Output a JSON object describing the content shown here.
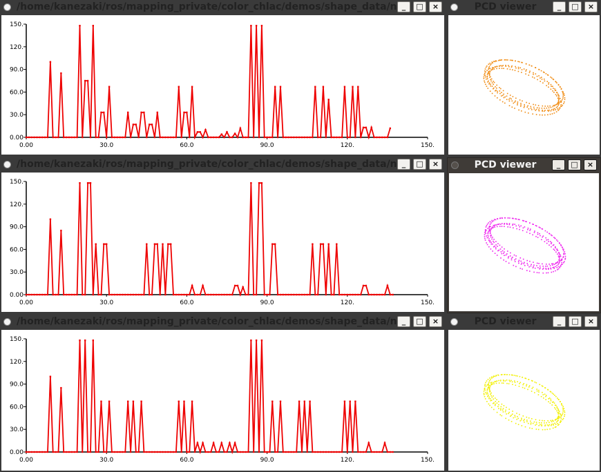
{
  "windows": [
    {
      "id": "hist1",
      "title": "/home/kanezaki/ros/mapping_private/color_chlac/demos/shape_data/ne",
      "active": false,
      "buttons": [
        "_",
        "□",
        "×"
      ]
    },
    {
      "id": "pcd1",
      "title": "PCD viewer",
      "active": false,
      "buttons": [
        "_",
        "□",
        "×"
      ]
    },
    {
      "id": "hist2",
      "title": "/home/kanezaki/ros/mapping_private/color_chlac/demos/shape_data/ne",
      "active": false,
      "buttons": [
        "_",
        "□",
        "×"
      ]
    },
    {
      "id": "pcd2",
      "title": "PCD viewer",
      "active": true,
      "buttons": [
        "_",
        "□",
        "×"
      ]
    },
    {
      "id": "hist3",
      "title": "/home/kanezaki/ros/mapping_private/color_chlac/demos/shape_data/ne",
      "active": false,
      "buttons": [
        "_",
        "□",
        "×"
      ]
    },
    {
      "id": "pcd3",
      "title": "PCD viewer",
      "active": false,
      "buttons": [
        "_",
        "□",
        "×"
      ]
    }
  ],
  "pcd_colors": [
    "#f08a10",
    "#ee22ee",
    "#f2f000"
  ],
  "chart_data": [
    {
      "type": "line",
      "color": "#ee0000",
      "xlim": [
        0,
        150
      ],
      "ylim": [
        0,
        150
      ],
      "xticks": [
        "0.00",
        "30.0",
        "60.0",
        "90.0",
        "120.",
        "150."
      ],
      "yticks": [
        "0.00",
        "30.0",
        "60.0",
        "90.0",
        "120.",
        "150."
      ],
      "peaks": [
        [
          9,
          100
        ],
        [
          13,
          85
        ],
        [
          20,
          148
        ],
        [
          22,
          75
        ],
        [
          23,
          75
        ],
        [
          25,
          148
        ],
        [
          28,
          33
        ],
        [
          29,
          33
        ],
        [
          31,
          67
        ],
        [
          38,
          33
        ],
        [
          40,
          17
        ],
        [
          41,
          17
        ],
        [
          43,
          33
        ],
        [
          44,
          33
        ],
        [
          46,
          17
        ],
        [
          47,
          17
        ],
        [
          49,
          33
        ],
        [
          57,
          67
        ],
        [
          59,
          33
        ],
        [
          60,
          33
        ],
        [
          62,
          67
        ],
        [
          64,
          7
        ],
        [
          65,
          7
        ],
        [
          67,
          10
        ],
        [
          73,
          4
        ],
        [
          75,
          7
        ],
        [
          78,
          5
        ],
        [
          80,
          12
        ],
        [
          84,
          148
        ],
        [
          86,
          148
        ],
        [
          88,
          148
        ],
        [
          93,
          67
        ],
        [
          95,
          67
        ],
        [
          108,
          67
        ],
        [
          111,
          67
        ],
        [
          113,
          50
        ],
        [
          119,
          67
        ],
        [
          122,
          67
        ],
        [
          124,
          67
        ],
        [
          126,
          13
        ],
        [
          127,
          13
        ],
        [
          129,
          13
        ],
        [
          136,
          12
        ]
      ],
      "last_x": 136
    },
    {
      "type": "line",
      "color": "#ee0000",
      "xlim": [
        0,
        150
      ],
      "ylim": [
        0,
        150
      ],
      "xticks": [
        "0.00",
        "30.0",
        "60.0",
        "90.0",
        "120.",
        "150."
      ],
      "yticks": [
        "0.00",
        "30.0",
        "60.0",
        "90.0",
        "120.",
        "150."
      ],
      "peaks": [
        [
          9,
          100
        ],
        [
          13,
          85
        ],
        [
          20,
          148
        ],
        [
          23,
          148
        ],
        [
          24,
          148
        ],
        [
          26,
          67
        ],
        [
          29,
          67
        ],
        [
          30,
          67
        ],
        [
          45,
          67
        ],
        [
          48,
          67
        ],
        [
          49,
          67
        ],
        [
          51,
          67
        ],
        [
          53,
          67
        ],
        [
          54,
          67
        ],
        [
          62,
          12
        ],
        [
          66,
          12
        ],
        [
          78,
          12
        ],
        [
          79,
          12
        ],
        [
          81,
          10
        ],
        [
          84,
          148
        ],
        [
          87,
          148
        ],
        [
          88,
          148
        ],
        [
          92,
          67
        ],
        [
          93,
          67
        ],
        [
          107,
          67
        ],
        [
          110,
          67
        ],
        [
          111,
          67
        ],
        [
          113,
          67
        ],
        [
          116,
          67
        ],
        [
          126,
          12
        ],
        [
          127,
          12
        ],
        [
          135,
          12
        ]
      ],
      "last_x": 137
    },
    {
      "type": "line",
      "color": "#ee0000",
      "xlim": [
        0,
        150
      ],
      "ylim": [
        0,
        150
      ],
      "xticks": [
        "0.00",
        "30.0",
        "60.0",
        "90.0",
        "120.",
        "150."
      ],
      "yticks": [
        "0.00",
        "30.0",
        "60.0",
        "90.0",
        "120.",
        "150."
      ],
      "peaks": [
        [
          9,
          100
        ],
        [
          13,
          85
        ],
        [
          20,
          148
        ],
        [
          22,
          148
        ],
        [
          25,
          148
        ],
        [
          28,
          67
        ],
        [
          31,
          67
        ],
        [
          38,
          67
        ],
        [
          40,
          67
        ],
        [
          43,
          67
        ],
        [
          57,
          67
        ],
        [
          59,
          67
        ],
        [
          62,
          67
        ],
        [
          64,
          12
        ],
        [
          66,
          12
        ],
        [
          70,
          12
        ],
        [
          73,
          12
        ],
        [
          76,
          12
        ],
        [
          78,
          12
        ],
        [
          84,
          148
        ],
        [
          86,
          148
        ],
        [
          88,
          148
        ],
        [
          92,
          67
        ],
        [
          95,
          67
        ],
        [
          102,
          67
        ],
        [
          104,
          67
        ],
        [
          106,
          67
        ],
        [
          119,
          67
        ],
        [
          121,
          67
        ],
        [
          123,
          67
        ],
        [
          128,
          12
        ],
        [
          134,
          12
        ]
      ],
      "last_x": 137
    }
  ]
}
